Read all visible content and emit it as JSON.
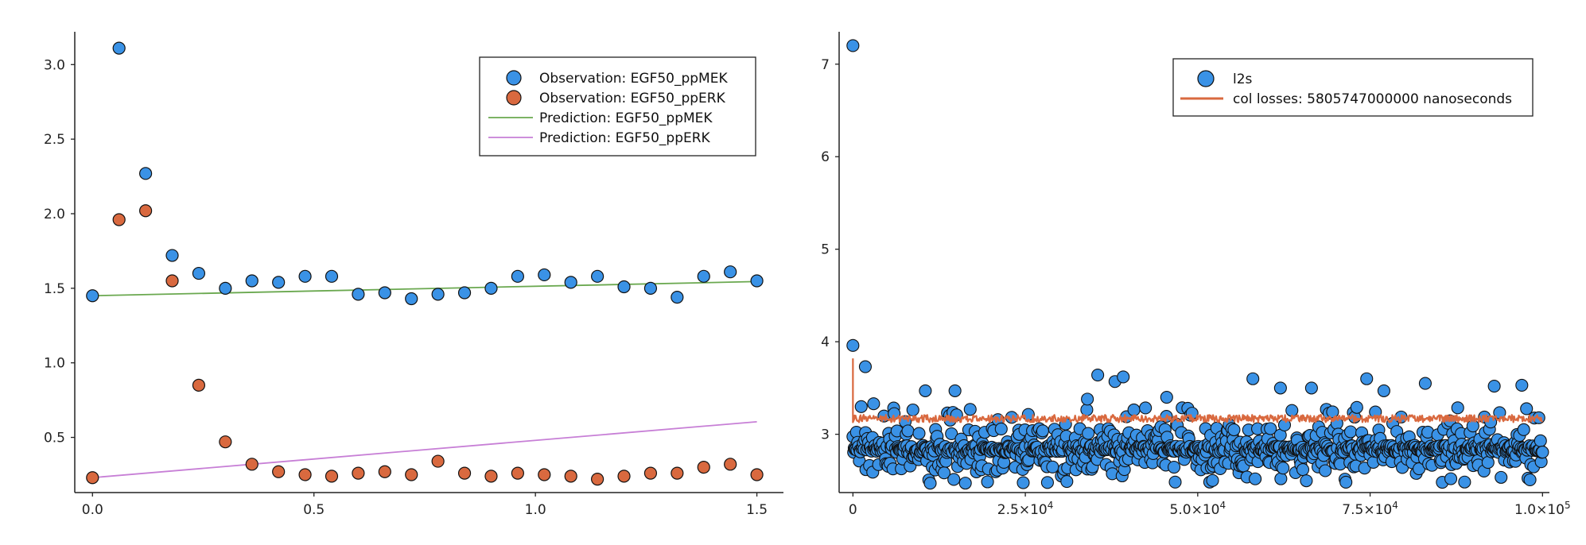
{
  "chart_data": [
    {
      "type": "scatter",
      "title": "",
      "xlabel": "",
      "ylabel": "",
      "xlim": [
        -0.04,
        1.56
      ],
      "ylim": [
        0.13,
        3.22
      ],
      "grid": false,
      "legend_position": "top-right",
      "x_ticks": [
        {
          "value": 0.0,
          "label": "0.0"
        },
        {
          "value": 0.5,
          "label": "0.5"
        },
        {
          "value": 1.0,
          "label": "1.0"
        },
        {
          "value": 1.5,
          "label": "1.5"
        }
      ],
      "y_ticks": [
        {
          "value": 0.5,
          "label": "0.5"
        },
        {
          "value": 1.0,
          "label": "1.0"
        },
        {
          "value": 1.5,
          "label": "1.5"
        },
        {
          "value": 2.0,
          "label": "2.0"
        },
        {
          "value": 2.5,
          "label": "2.5"
        },
        {
          "value": 3.0,
          "label": "3.0"
        }
      ],
      "x": [
        0.0,
        0.06,
        0.12,
        0.18,
        0.24,
        0.3,
        0.36,
        0.42,
        0.48,
        0.54,
        0.6,
        0.66,
        0.72,
        0.78,
        0.84,
        0.9,
        0.96,
        1.02,
        1.08,
        1.14,
        1.2,
        1.26,
        1.32,
        1.38,
        1.44,
        1.5
      ],
      "series": [
        {
          "name": "Observation: EGF50_ppMEK",
          "kind": "scatter",
          "color": "#3a92e6",
          "values": [
            1.45,
            3.11,
            2.27,
            1.72,
            1.6,
            1.5,
            1.55,
            1.54,
            1.58,
            1.58,
            1.46,
            1.47,
            1.43,
            1.46,
            1.47,
            1.5,
            1.58,
            1.59,
            1.54,
            1.58,
            1.51,
            1.5,
            1.44,
            1.58,
            1.61,
            1.55
          ]
        },
        {
          "name": "Observation: EGF50_ppERK",
          "kind": "scatter",
          "color": "#d9693f",
          "values": [
            0.23,
            1.96,
            2.02,
            1.55,
            0.85,
            0.47,
            0.32,
            0.27,
            0.25,
            0.24,
            0.26,
            0.27,
            0.25,
            0.34,
            0.26,
            0.24,
            0.26,
            0.25,
            0.24,
            0.22,
            0.24,
            0.26,
            0.26,
            0.3,
            0.32,
            0.25
          ]
        },
        {
          "name": "Prediction: EGF50_ppMEK",
          "kind": "line",
          "color": "#6aa84f",
          "x": [
            0.0,
            1.5
          ],
          "values": [
            1.45,
            1.545
          ]
        },
        {
          "name": "Prediction: EGF50_ppERK",
          "kind": "line",
          "color": "#c77fd6",
          "x": [
            0.0,
            1.5
          ],
          "values": [
            0.23,
            0.605
          ]
        }
      ]
    },
    {
      "type": "scatter",
      "title": "",
      "xlabel": "",
      "ylabel": "",
      "xlim": [
        -2000,
        101000
      ],
      "ylim": [
        2.37,
        7.35
      ],
      "grid": false,
      "legend_position": "top-right",
      "x_ticks": [
        {
          "value": 0,
          "label": "0"
        },
        {
          "value": 25000,
          "base": "2.5×10",
          "exp": "4"
        },
        {
          "value": 50000,
          "base": "5.0×10",
          "exp": "4"
        },
        {
          "value": 75000,
          "base": "7.5×10",
          "exp": "4"
        },
        {
          "value": 100000,
          "base": "1.0×10",
          "exp": "5"
        }
      ],
      "y_ticks": [
        {
          "value": 3,
          "label": "3"
        },
        {
          "value": 4,
          "label": "4"
        },
        {
          "value": 5,
          "label": "5"
        },
        {
          "value": 6,
          "label": "6"
        },
        {
          "value": 7,
          "label": "7"
        }
      ],
      "series": [
        {
          "name": "l2s",
          "kind": "scatter",
          "color": "#3a92e6",
          "x_range": [
            0,
            100000
          ],
          "points_shown": 1000,
          "outliers": [
            {
              "x": 0,
              "y": 7.2
            },
            {
              "x": 0,
              "y": 3.96
            },
            {
              "x": 1800,
              "y": 3.73
            },
            {
              "x": 3000,
              "y": 3.33
            },
            {
              "x": 10500,
              "y": 3.47
            },
            {
              "x": 14800,
              "y": 3.47
            },
            {
              "x": 34000,
              "y": 3.38
            },
            {
              "x": 35500,
              "y": 3.64
            },
            {
              "x": 38000,
              "y": 3.57
            },
            {
              "x": 39200,
              "y": 3.62
            },
            {
              "x": 45500,
              "y": 3.4
            },
            {
              "x": 58000,
              "y": 3.6
            },
            {
              "x": 62000,
              "y": 3.5
            },
            {
              "x": 66500,
              "y": 3.5
            },
            {
              "x": 74500,
              "y": 3.6
            },
            {
              "x": 77000,
              "y": 3.47
            },
            {
              "x": 83000,
              "y": 3.55
            },
            {
              "x": 93000,
              "y": 3.52
            },
            {
              "x": 97000,
              "y": 3.53
            }
          ],
          "typical_band": [
            2.47,
            3.3
          ],
          "typical_center": 2.84
        },
        {
          "name": "col losses: 5805747000000 nanoseconds",
          "kind": "line",
          "color": "#d9693f",
          "x_range": [
            0,
            100000
          ],
          "start_value": 3.82,
          "settled_value": 3.17,
          "settled_band": [
            3.13,
            3.21
          ]
        }
      ]
    }
  ]
}
